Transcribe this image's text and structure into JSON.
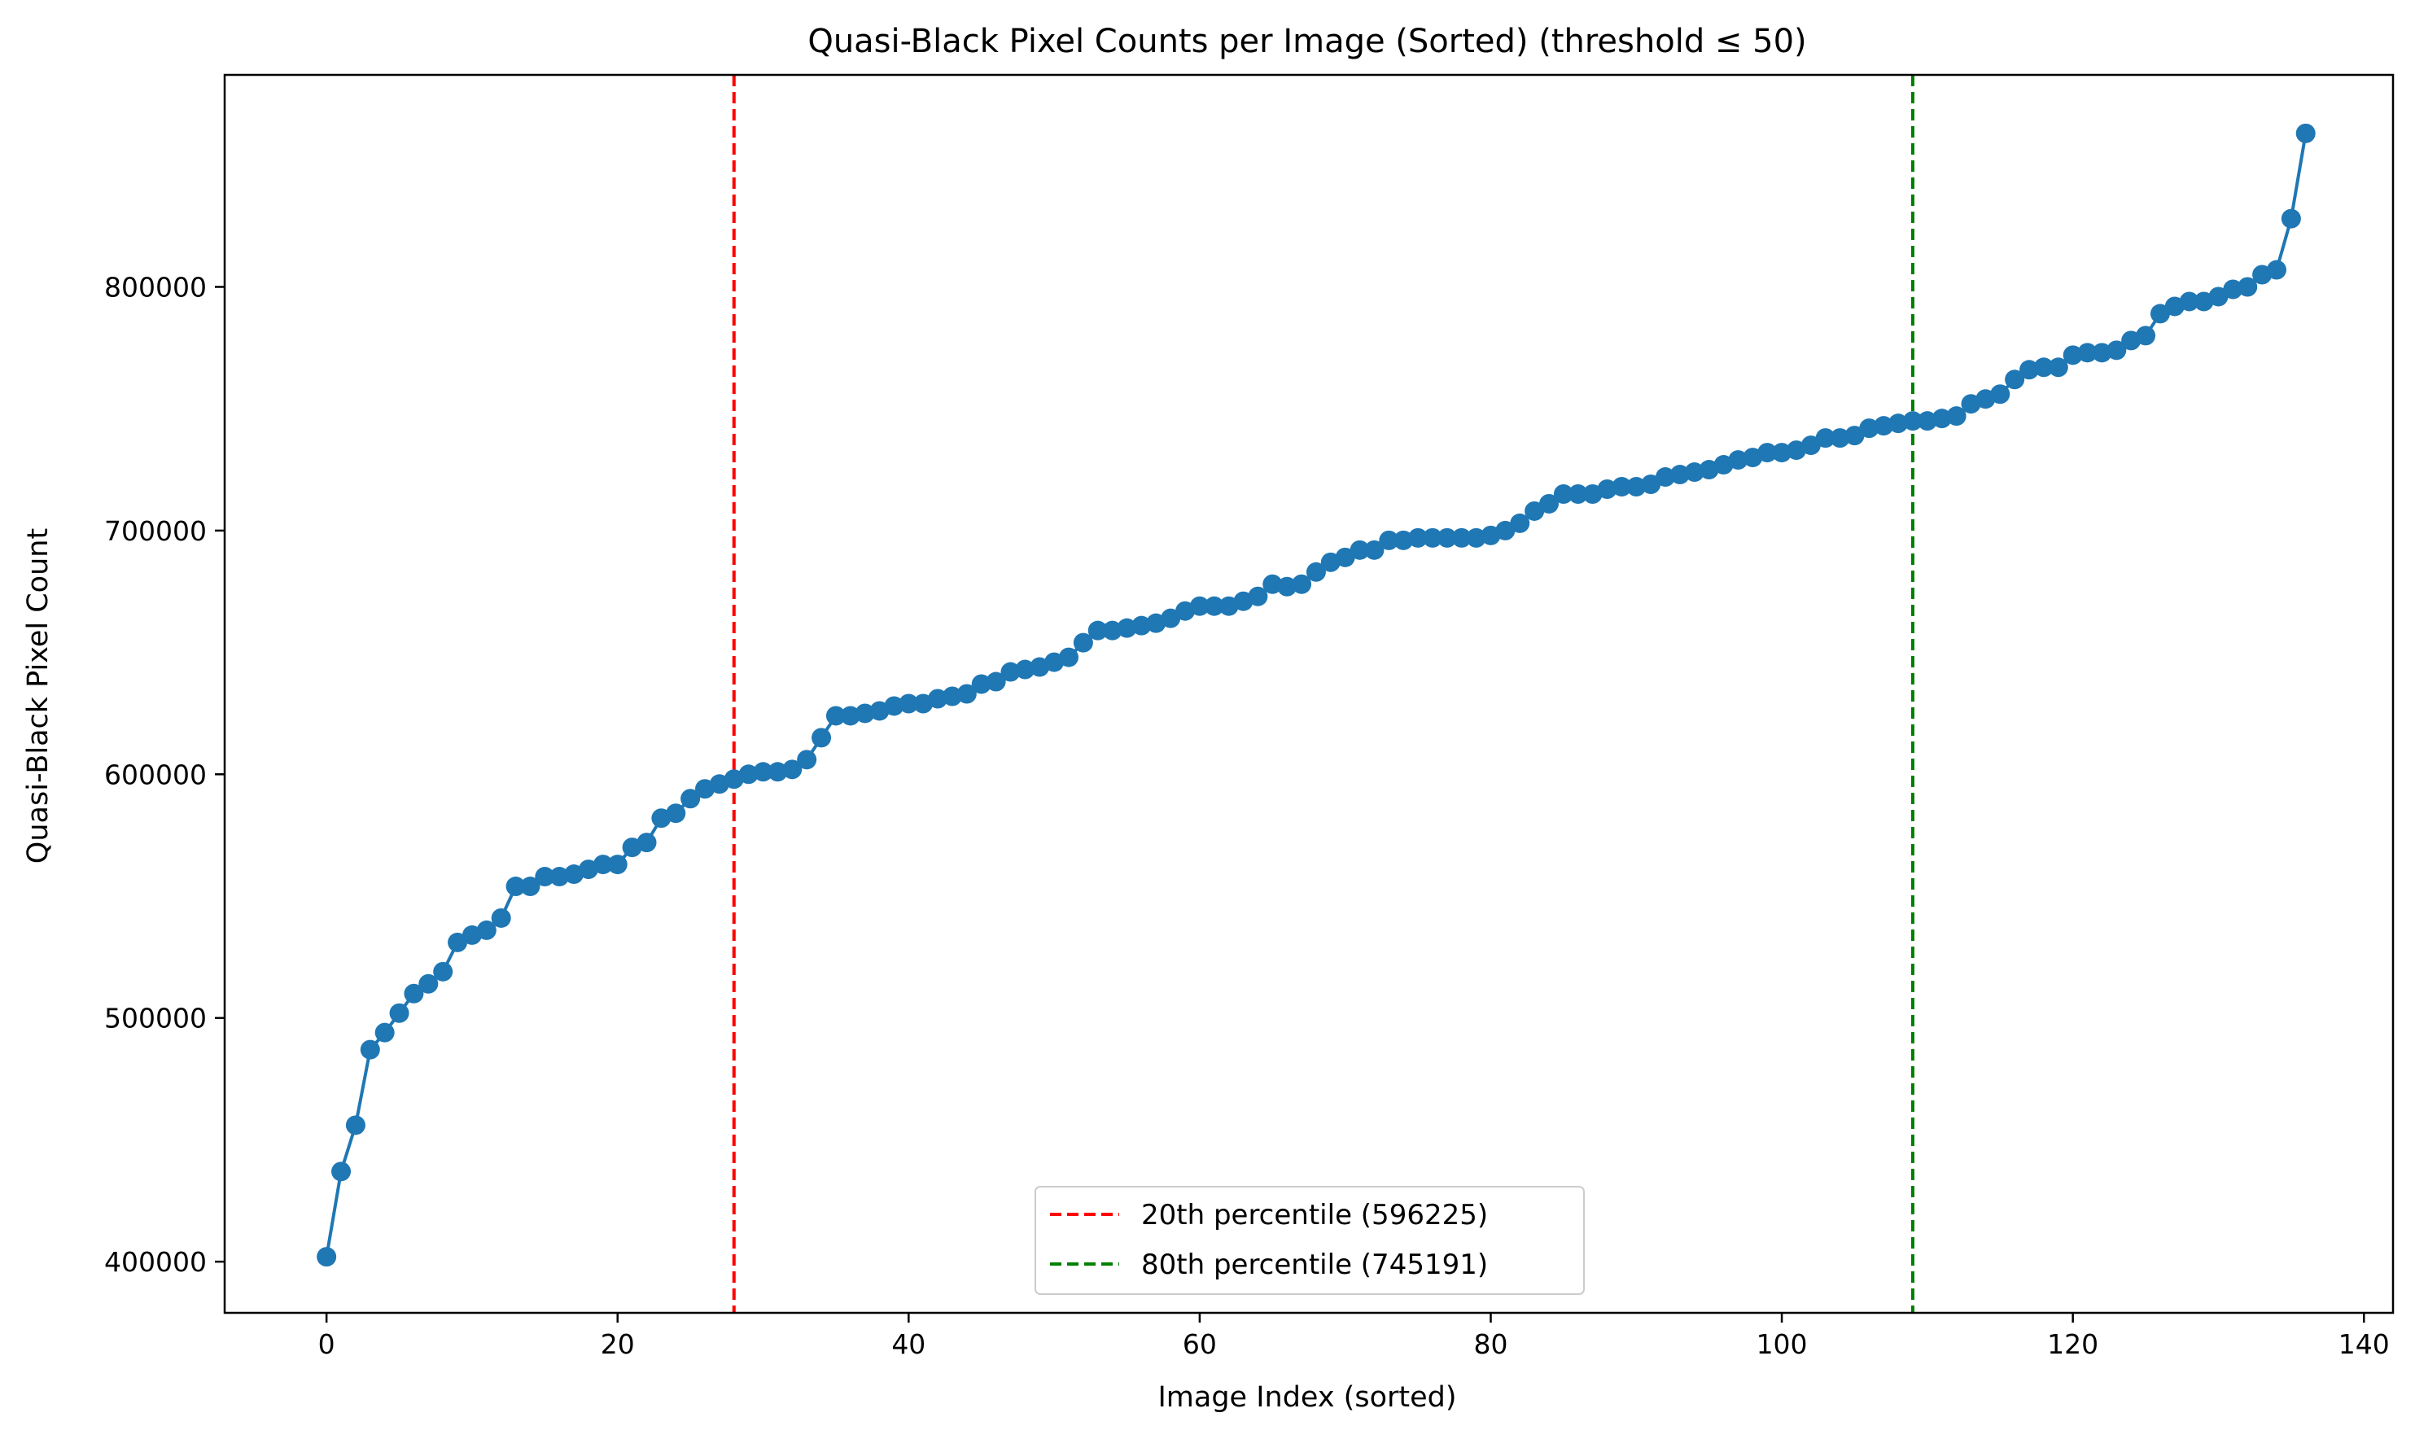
{
  "chart_data": {
    "type": "line",
    "title": "Quasi-Black Pixel Counts per Image (Sorted) (threshold ≤ 50)",
    "xlabel": "Image Index (sorted)",
    "ylabel": "Quasi-Black Pixel Count",
    "xlim": [
      -7,
      142
    ],
    "ylim": [
      379000,
      887000
    ],
    "xticks": [
      0,
      20,
      40,
      60,
      80,
      100,
      120,
      140
    ],
    "xtick_labels": [
      "0",
      "20",
      "40",
      "60",
      "80",
      "100",
      "120",
      "140"
    ],
    "yticks": [
      400000,
      500000,
      600000,
      700000,
      800000
    ],
    "ytick_labels": [
      "400000",
      "500000",
      "600000",
      "700000",
      "800000"
    ],
    "grid": false,
    "legend_position": "lower center",
    "series": [
      {
        "color": "#1f77b4",
        "marker": "circle",
        "x": [
          0,
          1,
          2,
          3,
          4,
          5,
          6,
          7,
          8,
          9,
          10,
          11,
          12,
          13,
          14,
          15,
          16,
          17,
          18,
          19,
          20,
          21,
          22,
          23,
          24,
          25,
          26,
          27,
          28,
          29,
          30,
          31,
          32,
          33,
          34,
          35,
          36,
          37,
          38,
          39,
          40,
          41,
          42,
          43,
          44,
          45,
          46,
          47,
          48,
          49,
          50,
          51,
          52,
          53,
          54,
          55,
          56,
          57,
          58,
          59,
          60,
          61,
          62,
          63,
          64,
          65,
          66,
          67,
          68,
          69,
          70,
          71,
          72,
          73,
          74,
          75,
          76,
          77,
          78,
          79,
          80,
          81,
          82,
          83,
          84,
          85,
          86,
          87,
          88,
          89,
          90,
          91,
          92,
          93,
          94,
          95,
          96,
          97,
          98,
          99,
          100,
          101,
          102,
          103,
          104,
          105,
          106,
          107,
          108,
          109,
          110,
          111,
          112,
          113,
          114,
          115,
          116,
          117,
          118,
          119,
          120,
          121,
          122,
          123,
          124,
          125,
          126,
          127,
          128,
          129,
          130,
          131,
          132,
          133,
          134,
          135,
          136
        ],
        "values": [
          402000,
          437000,
          456000,
          487000,
          494000,
          502000,
          510000,
          514000,
          519000,
          531000,
          534000,
          536000,
          541000,
          554000,
          554000,
          558000,
          558000,
          559000,
          561000,
          563000,
          563000,
          570000,
          572000,
          582000,
          584000,
          590000,
          594000,
          596000,
          598000,
          600000,
          601000,
          601000,
          602000,
          606000,
          615000,
          624000,
          624000,
          625000,
          626000,
          628000,
          629000,
          629000,
          631000,
          632000,
          633000,
          637000,
          638000,
          642000,
          643000,
          644000,
          646000,
          648000,
          654000,
          659000,
          659000,
          660000,
          661000,
          662000,
          664000,
          667000,
          669000,
          669000,
          669000,
          671000,
          673000,
          678000,
          677000,
          678000,
          683000,
          687000,
          689000,
          692000,
          692000,
          696000,
          696000,
          697000,
          697000,
          697000,
          697000,
          697000,
          698000,
          700000,
          703000,
          708000,
          711000,
          715000,
          715000,
          715000,
          717000,
          718000,
          718000,
          719000,
          722000,
          723000,
          724000,
          725000,
          727000,
          729000,
          730000,
          732000,
          732000,
          733000,
          735000,
          738000,
          738000,
          739000,
          742000,
          743000,
          744000,
          745000,
          745000,
          746000,
          747000,
          752000,
          754000,
          756000,
          762000,
          766000,
          767000,
          767000,
          772000,
          773000,
          773000,
          774000,
          778000,
          780000,
          789000,
          792000,
          794000,
          794000,
          796000,
          799000,
          800000,
          805000,
          807000,
          828000,
          863000
        ]
      }
    ],
    "reference_lines": [
      {
        "orientation": "vertical",
        "x": 28,
        "color": "#ff0000",
        "style": "dashed",
        "label": "20th percentile (596225)"
      },
      {
        "orientation": "vertical",
        "x": 109,
        "color": "#008000",
        "style": "dashed",
        "label": "80th percentile (745191)"
      }
    ]
  }
}
